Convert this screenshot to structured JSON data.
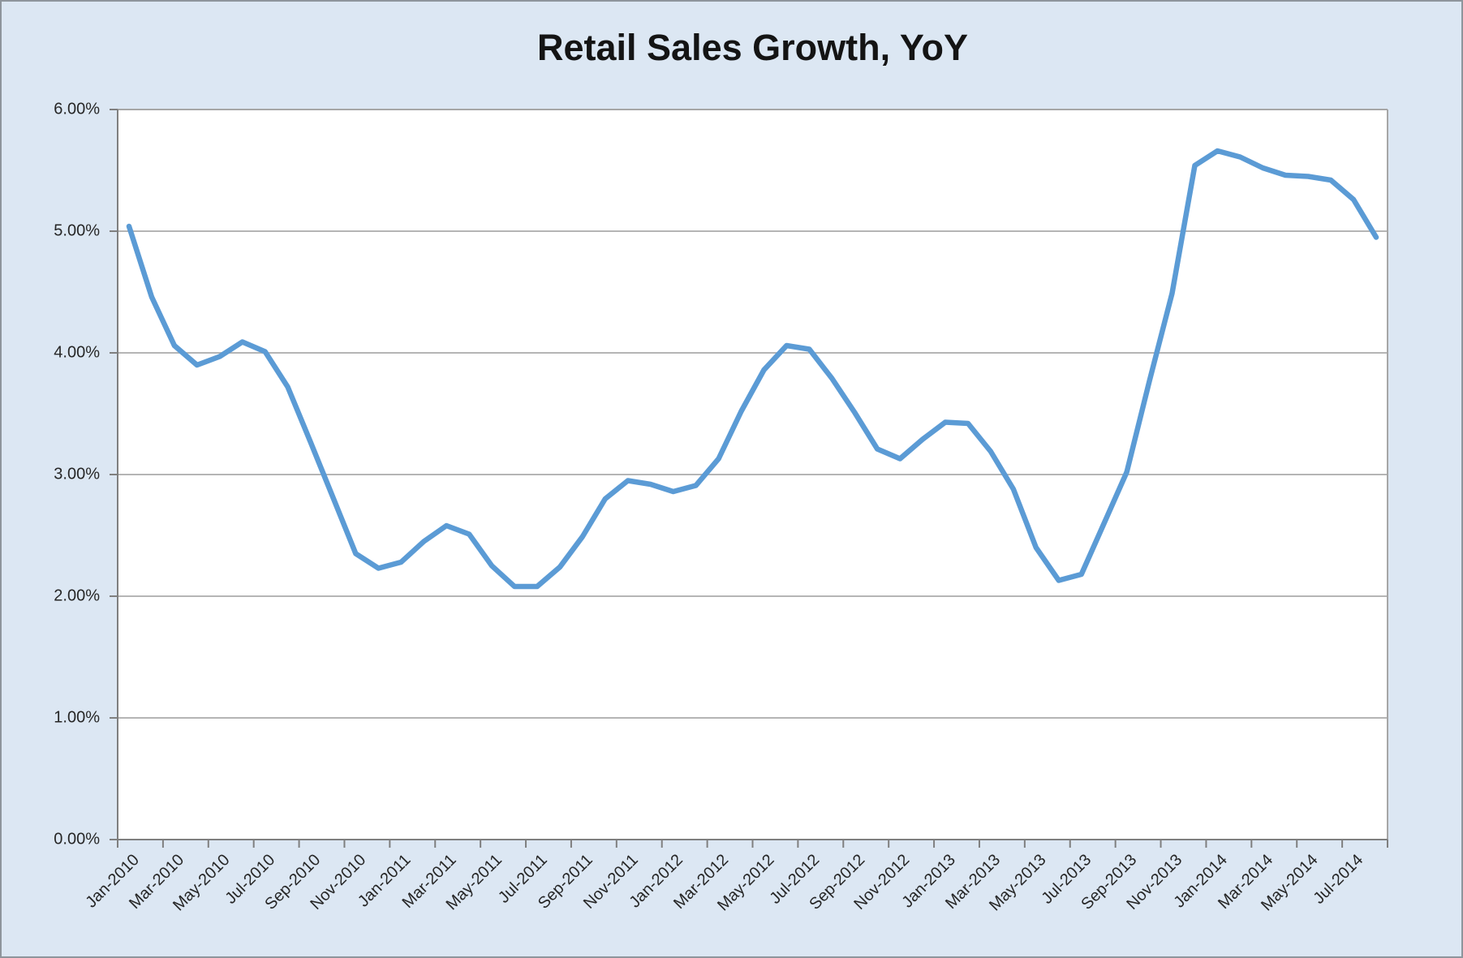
{
  "chart_data": {
    "type": "line",
    "title": "Retail Sales Growth, YoY",
    "unit": "%",
    "x": [
      "Jan-2010",
      "Feb-2010",
      "Mar-2010",
      "Apr-2010",
      "May-2010",
      "Jun-2010",
      "Jul-2010",
      "Aug-2010",
      "Sep-2010",
      "Oct-2010",
      "Nov-2010",
      "Dec-2010",
      "Jan-2011",
      "Feb-2011",
      "Mar-2011",
      "Apr-2011",
      "May-2011",
      "Jun-2011",
      "Jul-2011",
      "Aug-2011",
      "Sep-2011",
      "Oct-2011",
      "Nov-2011",
      "Dec-2011",
      "Jan-2012",
      "Feb-2012",
      "Mar-2012",
      "Apr-2012",
      "May-2012",
      "Jun-2012",
      "Jul-2012",
      "Aug-2012",
      "Sep-2012",
      "Oct-2012",
      "Nov-2012",
      "Dec-2012",
      "Jan-2013",
      "Feb-2013",
      "Mar-2013",
      "Apr-2013",
      "May-2013",
      "Jun-2013",
      "Jul-2013",
      "Aug-2013",
      "Sep-2013",
      "Oct-2013",
      "Nov-2013",
      "Dec-2013",
      "Jan-2014",
      "Feb-2014",
      "Mar-2014",
      "Apr-2014",
      "May-2014",
      "Jun-2014",
      "Jul-2014",
      "Aug-2014"
    ],
    "values": [
      5.04,
      4.46,
      4.06,
      3.9,
      3.97,
      4.09,
      4.01,
      3.72,
      3.27,
      2.81,
      2.35,
      2.23,
      2.28,
      2.45,
      2.58,
      2.51,
      2.25,
      2.08,
      2.08,
      2.24,
      2.49,
      2.8,
      2.95,
      2.92,
      2.86,
      2.91,
      3.13,
      3.52,
      3.86,
      4.06,
      4.03,
      3.79,
      3.51,
      3.21,
      3.13,
      3.29,
      3.43,
      3.42,
      3.19,
      2.88,
      2.4,
      2.13,
      2.18,
      2.6,
      3.02,
      3.77,
      4.49,
      5.54,
      5.66,
      5.61,
      5.52,
      5.46,
      5.45,
      5.42,
      5.26,
      4.95
    ],
    "series": [
      {
        "name": "Retail Sales Growth YoY"
      }
    ],
    "x_axis": {
      "tick_labels": [
        "Jan-2010",
        "Mar-2010",
        "May-2010",
        "Jul-2010",
        "Sep-2010",
        "Nov-2010",
        "Jan-2011",
        "Mar-2011",
        "May-2011",
        "Jul-2011",
        "Sep-2011",
        "Nov-2011",
        "Jan-2012",
        "Mar-2012",
        "May-2012",
        "Jul-2012",
        "Sep-2012",
        "Nov-2012",
        "Jan-2013",
        "Mar-2013",
        "May-2013",
        "Jul-2013",
        "Sep-2013",
        "Nov-2013",
        "Jan-2014",
        "Mar-2014",
        "May-2014",
        "Jul-2014"
      ],
      "label_interval_months": 2,
      "label_rotation_deg": 45
    },
    "y_axis": {
      "tick_labels_bottom_to_top": [
        "0.00%",
        "1.00%",
        "2.00%",
        "3.00%",
        "4.00%",
        "5.00%",
        "6.00%"
      ],
      "min": 0,
      "max": 6
    },
    "grid": true,
    "legend": false,
    "colors": {
      "line": "#5b9bd5",
      "chart_background": "#dce7f3",
      "plot_background": "#ffffff",
      "gridline": "#b5b5b5",
      "plot_border": "#a6a6a6",
      "axis": "#7f7f7f",
      "label_text": "#262626",
      "title_text": "#141414"
    }
  }
}
